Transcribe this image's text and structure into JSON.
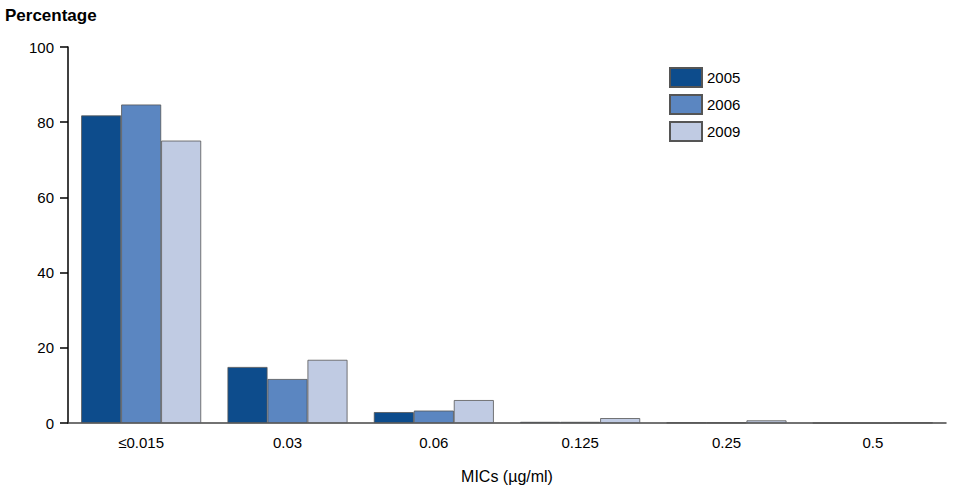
{
  "chart_data": {
    "type": "bar",
    "ylabel": "Percentage",
    "xlabel": "MICs (µg/ml)",
    "categories": [
      "≤0.015",
      "0.03",
      "0.06",
      "0.125",
      "0.25",
      "0.5"
    ],
    "series": [
      {
        "name": "2005",
        "color": "#0d4c8c",
        "values": [
          81.8,
          14.9,
          2.9,
          0.3,
          0.1,
          0
        ]
      },
      {
        "name": "2006",
        "color": "#5b86c1",
        "values": [
          84.7,
          11.7,
          3.3,
          0.3,
          0.1,
          0
        ]
      },
      {
        "name": "2009",
        "color": "#c0cbe3",
        "values": [
          75.1,
          16.8,
          6.1,
          1.3,
          0.7,
          0.1
        ]
      }
    ],
    "ylim": [
      0,
      100
    ],
    "yticks": [
      0,
      20,
      40,
      60,
      80,
      100
    ],
    "grid": false,
    "legend": "upper right"
  }
}
